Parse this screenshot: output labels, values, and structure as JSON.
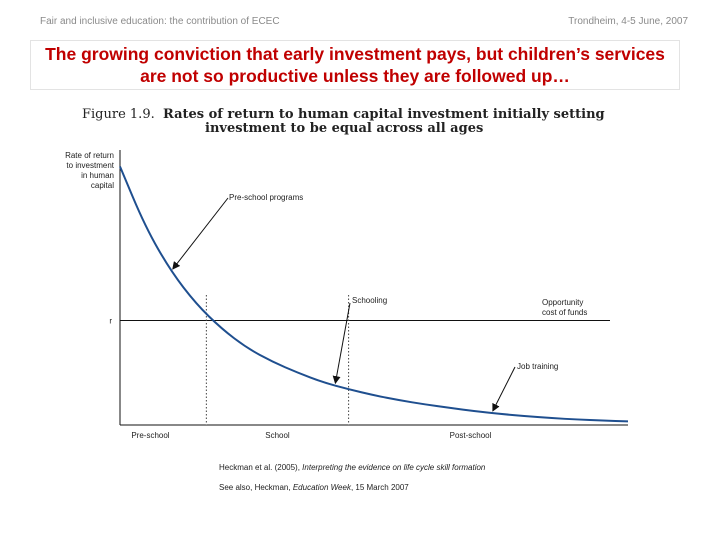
{
  "header": {
    "left": "Fair and inclusive education: the contribution of ECEC",
    "right": "Trondheim, 4-5 June, 2007"
  },
  "slide_title": {
    "line1": "The growing conviction that early investment pays, but children’s services",
    "line2": "are not so productive unless they are followed up…"
  },
  "chart_data": {
    "type": "line",
    "title_number": "Figure 1.9.",
    "title_line1": "Rates of return to human capital investment initially setting",
    "title_line2": "investment to be equal across all ages",
    "ylabel_lines": [
      "Rate of return",
      "to investment",
      "in human",
      "capital"
    ],
    "xlabel": "",
    "y_reference_label": "r",
    "stages": [
      "Pre-school",
      "School",
      "Post-school"
    ],
    "series": [
      {
        "x": [
          0.0,
          0.05,
          0.1,
          0.15,
          0.2,
          0.25,
          0.3,
          0.35,
          0.4,
          0.45,
          0.5,
          0.55,
          0.6,
          0.65,
          0.7,
          0.75,
          0.8,
          0.85,
          0.9,
          0.95,
          1.0
        ],
        "values": [
          0.94,
          0.72,
          0.56,
          0.44,
          0.35,
          0.28,
          0.23,
          0.19,
          0.155,
          0.13,
          0.108,
          0.09,
          0.075,
          0.062,
          0.05,
          0.04,
          0.032,
          0.025,
          0.02,
          0.016,
          0.013
        ]
      }
    ],
    "reference_line_value": 0.38,
    "stage_boundaries": [
      0.17,
      0.45
    ],
    "annotations": [
      {
        "text": "Pre-school programs",
        "x": 0.1
      },
      {
        "text": "Schooling",
        "x": 0.42
      },
      {
        "text": "Opportunity",
        "text2": "cost of funds",
        "x": 0.85
      },
      {
        "text": "Job training",
        "x": 0.73
      }
    ],
    "xlim": [
      0,
      1
    ],
    "ylim": [
      0,
      1
    ],
    "grid": false
  },
  "caption": {
    "line1_plain": "Heckman et al. (2005),",
    "line1_italic": "Interpreting the evidence on life cycle skill formation",
    "line2_plain": "See also, Heckman,",
    "line2_italic": "Education Week",
    "line2_tail": ", 15 March 2007"
  }
}
